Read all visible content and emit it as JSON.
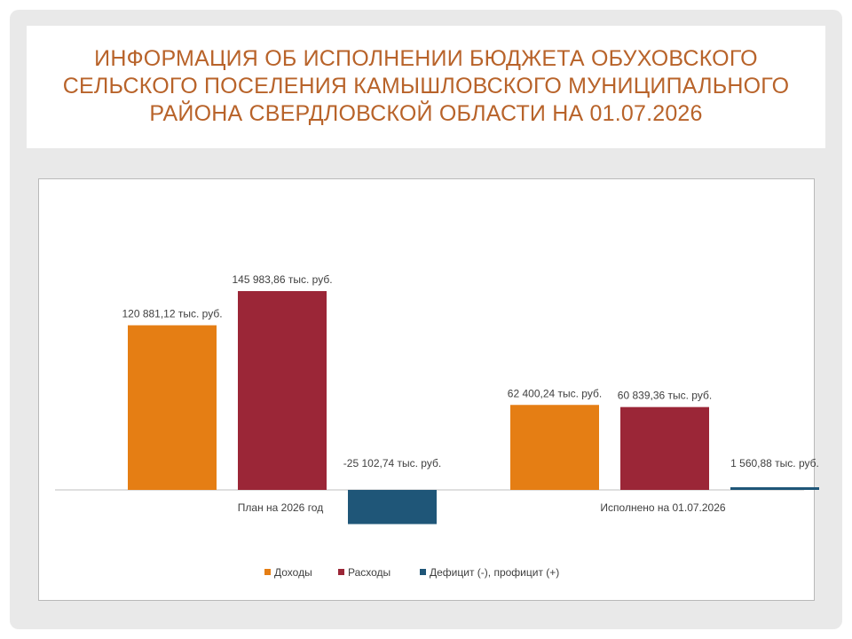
{
  "title": "ИНФОРМАЦИЯ ОБ ИСПОЛНЕНИИ БЮДЖЕТА ОБУХОВСКОГО СЕЛЬСКОГО ПОСЕЛЕНИЯ КАМЫШЛОВСКОГО МУНИЦИПАЛЬНОГО РАЙОНА СВЕРДЛОВСКОЙ ОБЛАСТИ НА 01.07.2026",
  "title_lines": [
    "ИНФОРМАЦИЯ ОБ ИСПОЛНЕНИИ БЮДЖЕТА ОБУХОВСКОГО",
    "СЕЛЬСКОГО ПОСЕЛЕНИЯ КАМЫШЛОВСКОГО МУНИЦИПАЛЬНОГО",
    "РАЙОНА СВЕРДЛОВСКОЙ ОБЛАСТИ НА 01.07.2026"
  ],
  "colors": {
    "title": "#b8632a",
    "income": "#e57e14",
    "expense": "#9b2637",
    "balance": "#1f5678"
  },
  "chart_data": {
    "type": "bar",
    "categories": [
      "План на 2026 год",
      "Исполнено на 01.07.2026"
    ],
    "series": [
      {
        "name": "Доходы",
        "color": "#e57e14",
        "values": [
          120881.12,
          62400.24
        ],
        "labels": [
          "120 881,12 тыс. руб.",
          "62 400,24 тыс. руб."
        ]
      },
      {
        "name": "Расходы",
        "color": "#9b2637",
        "values": [
          145983.86,
          60839.36
        ],
        "labels": [
          "145 983,86 тыс. руб.",
          "60 839,36 тыс. руб."
        ]
      },
      {
        "name": "Дефицит (-), профицит (+)",
        "color": "#1f5678",
        "values": [
          -25102.74,
          1560.88
        ],
        "labels": [
          "-25 102,74 тыс. руб.",
          "1 560,88 тыс. руб."
        ]
      }
    ],
    "legend": "bottom",
    "grid": false,
    "ylim": [
      -30000,
      160000
    ]
  }
}
